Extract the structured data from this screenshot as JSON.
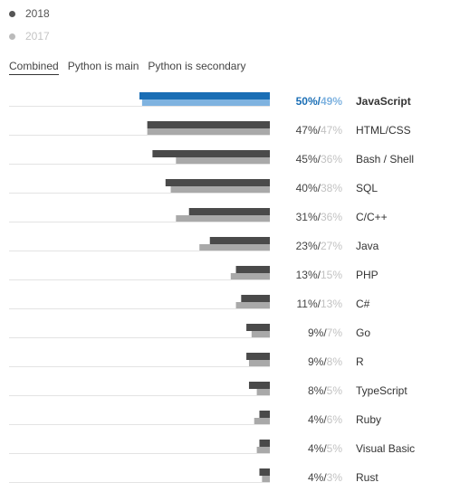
{
  "legend": [
    {
      "label": "2018",
      "color": "#555555"
    },
    {
      "label": "2017",
      "color": "#bbbbbb"
    }
  ],
  "tabs": [
    {
      "label": "Combined",
      "active": true
    },
    {
      "label": "Python is main",
      "active": false
    },
    {
      "label": "Python is secondary",
      "active": false
    }
  ],
  "colors": {
    "current": "#4a4a4a",
    "previous": "#a9a9a9",
    "highlight_current": "#1a6eb5",
    "highlight_previous": "#7fb3e0"
  },
  "chart_data": {
    "type": "bar",
    "orientation": "horizontal",
    "categories": [
      "JavaScript",
      "HTML/CSS",
      "Bash / Shell",
      "SQL",
      "C/C++",
      "Java",
      "PHP",
      "C#",
      "Go",
      "R",
      "TypeScript",
      "Ruby",
      "Visual Basic",
      "Rust"
    ],
    "series": [
      {
        "name": "2018",
        "values": [
          50,
          47,
          45,
          40,
          31,
          23,
          13,
          11,
          9,
          9,
          8,
          4,
          4,
          4
        ]
      },
      {
        "name": "2017",
        "values": [
          49,
          47,
          36,
          38,
          36,
          27,
          15,
          13,
          7,
          8,
          5,
          6,
          5,
          3
        ]
      }
    ],
    "labels_2018": [
      "50%",
      "47%",
      "45%",
      "40%",
      "31%",
      "23%",
      "13%",
      "11%",
      "9%",
      "9%",
      "8%",
      "4%",
      "4%",
      "4%"
    ],
    "labels_2017": [
      "49%",
      "47%",
      "36%",
      "38%",
      "36%",
      "27%",
      "15%",
      "13%",
      "7%",
      "8%",
      "5%",
      "6%",
      "5%",
      "3%"
    ],
    "highlighted_category": "JavaScript",
    "xlim": [
      0,
      50
    ],
    "grid": false,
    "legend_position": "top-left"
  }
}
